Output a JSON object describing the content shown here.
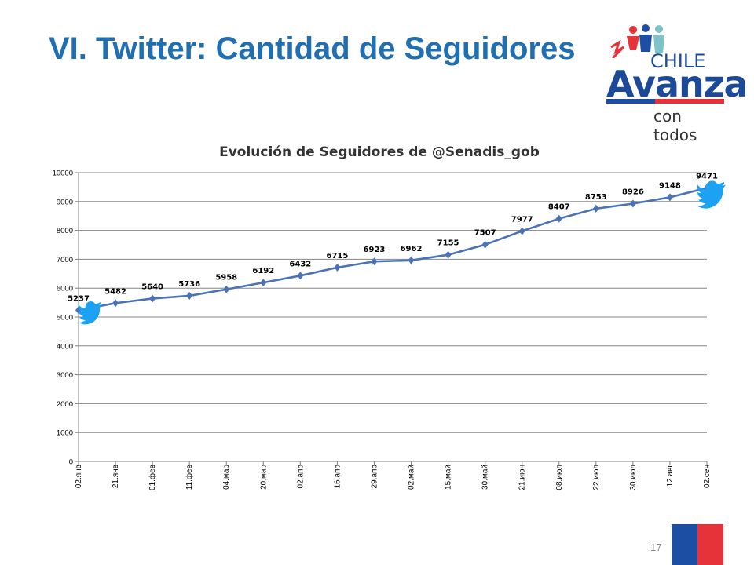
{
  "slide": {
    "title": "VI. Twitter: Cantidad de Seguidores",
    "page_number": "17"
  },
  "logo": {
    "line1": "CHILE",
    "line2": "Avanza",
    "line3": "con todos",
    "colors": {
      "blue": "#1c4fa3",
      "red": "#e63339"
    }
  },
  "icons": [
    "twitter-bird-icon",
    "twitter-bird-icon"
  ],
  "colors": {
    "title": "#1f6fb2",
    "series": "#4a72b5",
    "twitter": "#1da1f2"
  },
  "chart_data": {
    "type": "line",
    "title": "Evolución de Seguidores de @Senadis_gob",
    "xlabel": "",
    "ylabel": "",
    "ylim": [
      0,
      10000
    ],
    "yticks": [
      0,
      1000,
      2000,
      3000,
      4000,
      5000,
      6000,
      7000,
      8000,
      9000,
      10000
    ],
    "grid": true,
    "legend": "none",
    "categories": [
      "02.янв",
      "21.янв",
      "01.фев",
      "11.фев",
      "04.мар",
      "20.мар",
      "02.апр",
      "16.апр",
      "29.апр",
      "02.май",
      "15.май",
      "30.май",
      "21.июн",
      "08.июл",
      "22.июл",
      "30.июл",
      "12.авг",
      "02.сен"
    ],
    "series": [
      {
        "values": [
          5237,
          5482,
          5640,
          5736,
          5958,
          6192,
          6432,
          6715,
          6923,
          6962,
          7155,
          7507,
          7977,
          8407,
          8753,
          8926,
          9148,
          9471
        ]
      }
    ]
  }
}
